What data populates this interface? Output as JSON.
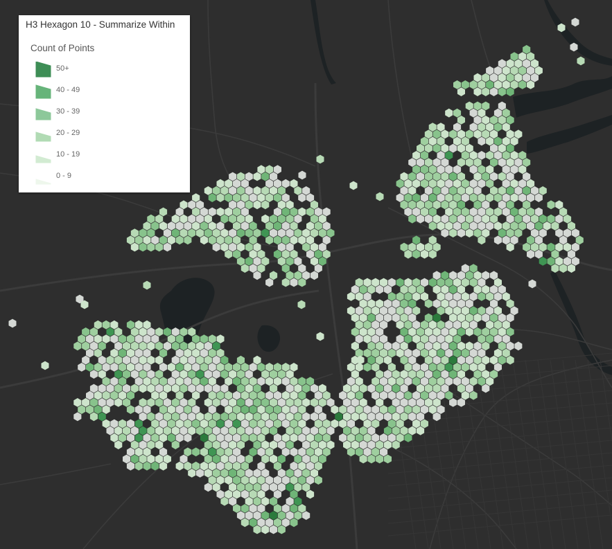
{
  "legend": {
    "title": "H3 Hexagon 10 - Summarize Within",
    "subtitle": "Count of Points",
    "classes": [
      {
        "label": "50+",
        "color": "#3e8e56"
      },
      {
        "label": "40 - 49",
        "color": "#67b47a"
      },
      {
        "label": "30 - 39",
        "color": "#8dc89a"
      },
      {
        "label": "20 - 29",
        "color": "#b1dbb4"
      },
      {
        "label": "10 - 19",
        "color": "#d2ebd2"
      },
      {
        "label": "0 - 9",
        "color": "#eef7ec"
      }
    ]
  },
  "map": {
    "basemap_color": "#2e2e2e",
    "water_color": "#1d2224",
    "road_color": "#3b3b3b",
    "hex_colors": [
      "#d4d8d4",
      "#cde4cb",
      "#b7dab5",
      "#9fcf9f",
      "#88c38c",
      "#6fb577",
      "#3f9553",
      "#2b7a3c"
    ]
  }
}
